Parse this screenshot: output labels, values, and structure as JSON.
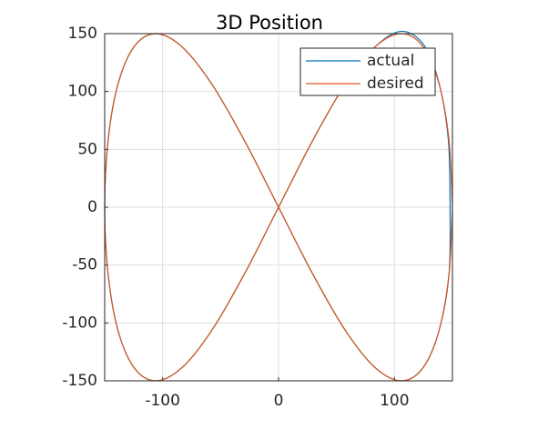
{
  "chart_data": {
    "type": "line",
    "title": "3D Position",
    "xlim": [
      -150,
      150
    ],
    "ylim": [
      -150,
      150
    ],
    "xticks": [
      -100,
      0,
      100
    ],
    "yticks": [
      -150,
      -100,
      -50,
      0,
      50,
      100,
      150
    ],
    "grid": true,
    "legend": "northeast",
    "series": [
      {
        "name": "actual",
        "color": "#0072bd",
        "x": [
          148,
          146.5,
          138.6,
          125.5,
          106.1,
          83.3,
          57.4,
          29.3,
          0,
          -29.3,
          -57.4,
          -83.3,
          -106.1,
          -124.7,
          -138.6,
          -147.1,
          -150,
          -147.1,
          -138.6,
          -124.7,
          -106.1,
          -83.3,
          -57.4,
          -29.3,
          0,
          29.3,
          57.4,
          83.3,
          106.1,
          124.7,
          138.6,
          147.1,
          148
        ],
        "values": [
          2,
          58,
          106.5,
          140,
          152,
          138.6,
          106.1,
          57.4,
          0,
          -57.4,
          -106.1,
          -138.6,
          -150,
          -138.6,
          -106.1,
          -57.4,
          0,
          57.4,
          106.1,
          138.6,
          150,
          138.6,
          106.1,
          57.4,
          0,
          -57.4,
          -106.1,
          -138.6,
          -150,
          -138.6,
          -106.1,
          -57.4,
          2
        ]
      },
      {
        "name": "desired",
        "color": "#d95319",
        "x": [
          150,
          147.1,
          138.6,
          124.7,
          106.1,
          83.3,
          57.4,
          29.3,
          0,
          -29.3,
          -57.4,
          -83.3,
          -106.1,
          -124.7,
          -138.6,
          -147.1,
          -150,
          -147.1,
          -138.6,
          -124.7,
          -106.1,
          -83.3,
          -57.4,
          -29.3,
          0,
          29.3,
          57.4,
          83.3,
          106.1,
          124.7,
          138.6,
          147.1,
          150
        ],
        "values": [
          0,
          57.4,
          106.1,
          138.6,
          150,
          138.6,
          106.1,
          57.4,
          0,
          -57.4,
          -106.1,
          -138.6,
          -150,
          -138.6,
          -106.1,
          -57.4,
          0,
          57.4,
          106.1,
          138.6,
          150,
          138.6,
          106.1,
          57.4,
          0,
          -57.4,
          -106.1,
          -138.6,
          -150,
          -138.6,
          -106.1,
          -57.4,
          0
        ]
      }
    ]
  }
}
